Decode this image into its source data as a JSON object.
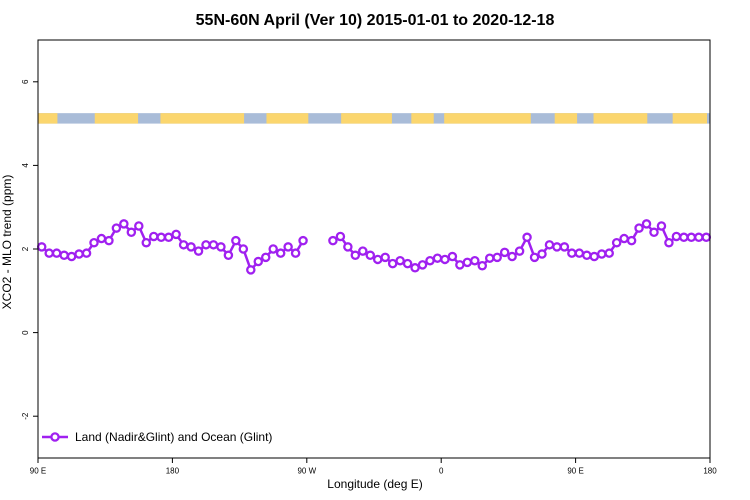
{
  "chart_data": {
    "type": "line",
    "title": "55N-60N April (Ver 10)   2015-01-01 to 2020-12-18",
    "xlabel": "Longitude (deg E)",
    "ylabel": "XCO2 - MLO trend (ppm)",
    "xlim": [
      90,
      540
    ],
    "ylim": [
      -3,
      7
    ],
    "x_ticks": [
      {
        "value": 90,
        "label": "90 E"
      },
      {
        "value": 180,
        "label": "180"
      },
      {
        "value": 270,
        "label": "90 W"
      },
      {
        "value": 360,
        "label": "0"
      },
      {
        "value": 450,
        "label": "90 E"
      },
      {
        "value": 540,
        "label": "180"
      }
    ],
    "y_ticks": [
      {
        "value": -2,
        "label": "-2"
      },
      {
        "value": 0,
        "label": "0"
      },
      {
        "value": 2,
        "label": "2"
      },
      {
        "value": 4,
        "label": "4"
      },
      {
        "value": 6,
        "label": "6"
      }
    ],
    "legend": {
      "position": "bottom-left",
      "entries": [
        "Land (Nadir&Glint) and Ocean (Glint)"
      ]
    },
    "series": [
      {
        "name": "Land (Nadir&Glint) and Ocean (Glint)",
        "color": "#a020f0",
        "segments": [
          {
            "x": [
              92.5,
              97.5,
              102.5,
              107.5,
              112.5,
              117.5,
              122.5,
              127.5,
              132.5,
              137.5,
              142.5,
              147.5,
              152.5,
              157.5,
              162.5,
              167.5,
              172.5,
              177.5,
              182.5,
              187.5,
              192.5,
              197.5,
              202.5,
              207.5,
              212.5,
              217.5,
              222.5,
              227.5,
              232.5,
              237.5,
              242.5,
              247.5,
              252.5,
              257.5,
              262.5,
              267.5
            ],
            "y": [
              2.05,
              1.9,
              1.9,
              1.85,
              1.82,
              1.88,
              1.9,
              2.15,
              2.25,
              2.2,
              2.5,
              2.6,
              2.4,
              2.55,
              2.15,
              2.3,
              2.28,
              2.28,
              2.35,
              2.1,
              2.05,
              1.95,
              2.1,
              2.1,
              2.05,
              1.85,
              2.2,
              2.0,
              1.5,
              1.7,
              1.8,
              2.0,
              1.9,
              2.05,
              1.9,
              2.2
            ]
          },
          {
            "x": [
              287.5,
              292.5,
              297.5,
              302.5,
              307.5,
              312.5,
              317.5,
              322.5,
              327.5,
              332.5,
              337.5,
              342.5,
              347.5,
              352.5,
              357.5,
              362.5,
              367.5,
              372.5,
              377.5,
              382.5,
              387.5,
              392.5,
              397.5,
              402.5,
              407.5,
              412.5,
              417.5,
              422.5,
              427.5,
              432.5,
              437.5,
              442.5,
              447.5,
              452.5,
              457.5,
              462.5,
              467.5,
              472.5,
              477.5,
              482.5,
              487.5,
              492.5,
              497.5,
              502.5,
              507.5,
              512.5,
              517.5,
              522.5,
              527.5,
              532.5,
              537.5
            ],
            "y": [
              2.2,
              2.3,
              2.05,
              1.85,
              1.95,
              1.85,
              1.75,
              1.8,
              1.65,
              1.72,
              1.65,
              1.55,
              1.62,
              1.72,
              1.78,
              1.75,
              1.82,
              1.62,
              1.68,
              1.72,
              1.6,
              1.78,
              1.8,
              1.92,
              1.82,
              1.95,
              2.28,
              1.8,
              1.88,
              2.1,
              2.05,
              2.05,
              1.9,
              1.9,
              1.85,
              1.82,
              1.88,
              1.9,
              2.15,
              2.25,
              2.2,
              2.5,
              2.6,
              2.4,
              2.55,
              2.15,
              2.3,
              2.28,
              2.28,
              2.28,
              2.28
            ]
          }
        ]
      }
    ],
    "land_ocean_band": {
      "y_range": [
        5.0,
        5.25
      ],
      "ocean_color": "#a9bcd8",
      "land_color": "#fbd66e",
      "land_x_ranges": [
        [
          90,
          103
        ],
        [
          128,
          157
        ],
        [
          172,
          228
        ],
        [
          243,
          271
        ],
        [
          293,
          327
        ],
        [
          340,
          355
        ],
        [
          362,
          420
        ],
        [
          436,
          451
        ],
        [
          462,
          498
        ],
        [
          515,
          538
        ]
      ]
    },
    "grid": false,
    "colors": {
      "background": "#ffffff",
      "axis": "#000000",
      "series": "#a020f0"
    }
  }
}
